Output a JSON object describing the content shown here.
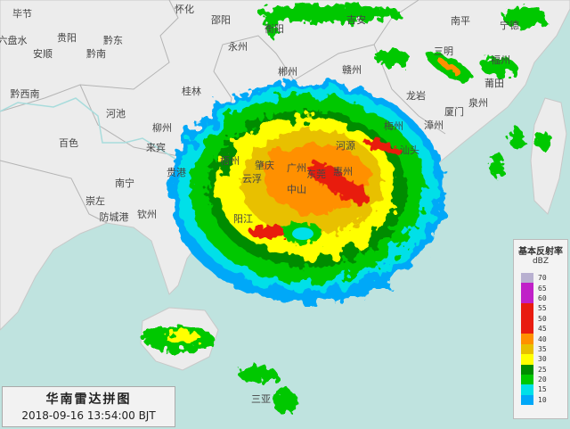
{
  "caption": {
    "title": "华南雷达拼图",
    "datetime": "2018-09-16 13:54:00 BJT"
  },
  "legend": {
    "title": "基本反射率",
    "unit": "dBZ",
    "levels": [
      {
        "value": "70",
        "color": "#b8b0d0"
      },
      {
        "value": "65",
        "color": "#c020c8"
      },
      {
        "value": "60",
        "color": "#c020c8"
      },
      {
        "value": "55",
        "color": "#e81c10"
      },
      {
        "value": "50",
        "color": "#e81c10"
      },
      {
        "value": "45",
        "color": "#e81c10"
      },
      {
        "value": "40",
        "color": "#ff9000"
      },
      {
        "value": "35",
        "color": "#e8c000"
      },
      {
        "value": "30",
        "color": "#ffff00"
      },
      {
        "value": "25",
        "color": "#008c00"
      },
      {
        "value": "20",
        "color": "#00c800"
      },
      {
        "value": "15",
        "color": "#00e0e8"
      },
      {
        "value": "10",
        "color": "#00a8f8"
      }
    ]
  },
  "cities": [
    "毕节",
    "六盘水",
    "贵阳",
    "黔东",
    "安顺",
    "黔南",
    "黔西南",
    "河池",
    "柳州",
    "桂林",
    "百色",
    "来宾",
    "南宁",
    "崇左",
    "防城港",
    "钦州",
    "贵港",
    "梧州",
    "怀化",
    "邵阳",
    "永州",
    "衡阳",
    "郴州",
    "吉安",
    "赣州",
    "三明",
    "南平",
    "宁德",
    "福州",
    "莆田",
    "泉州",
    "龙岩",
    "厦门",
    "漳州",
    "梅州",
    "河源",
    "广州",
    "东莞",
    "惠州",
    "汕头",
    "肇庆",
    "云浮",
    "中山",
    "阳江",
    "三亚"
  ],
  "colors": {
    "land": "#ececec",
    "sea": "#bfe3df",
    "border": "#b0b0b0",
    "river": "#a8dcdc"
  }
}
